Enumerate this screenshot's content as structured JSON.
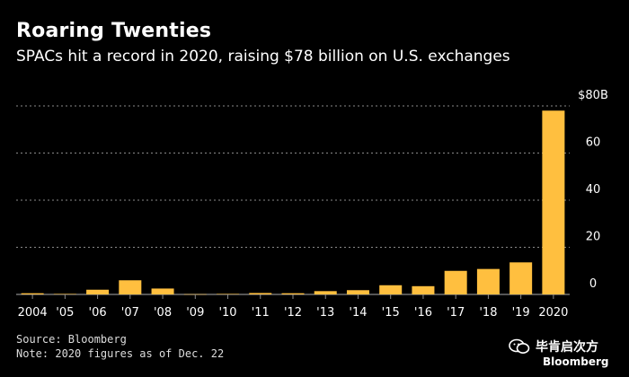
{
  "chart_data": {
    "type": "bar",
    "title": "Roaring Twenties",
    "subtitle": "SPACs hit a record in 2020, raising $78 billion on U.S. exchanges",
    "categories": [
      "2004",
      "'05",
      "'06",
      "'07",
      "'08",
      "'09",
      "'10",
      "'11",
      "'12",
      "'13",
      "'14",
      "'15",
      "'16",
      "'17",
      "'18",
      "'19",
      "2020"
    ],
    "values": [
      0.5,
      0.2,
      2.0,
      6.0,
      2.5,
      0.1,
      0.2,
      0.6,
      0.5,
      1.4,
      1.8,
      3.9,
      3.5,
      10.0,
      10.8,
      13.6,
      78
    ],
    "ylim": [
      0,
      80
    ],
    "yticks": [
      0,
      20,
      40,
      60,
      80
    ],
    "ytick_labels": [
      "0",
      "20",
      "40",
      "60",
      "$80B"
    ],
    "grid": true,
    "bar_color": "#ffbf3f",
    "grid_color": "#8a8a8a"
  },
  "source": "Source: Bloomberg",
  "note": "Note: 2020 figures as of Dec. 22",
  "watermark": {
    "text": "毕肯启次方",
    "logo": "Bloomberg"
  }
}
